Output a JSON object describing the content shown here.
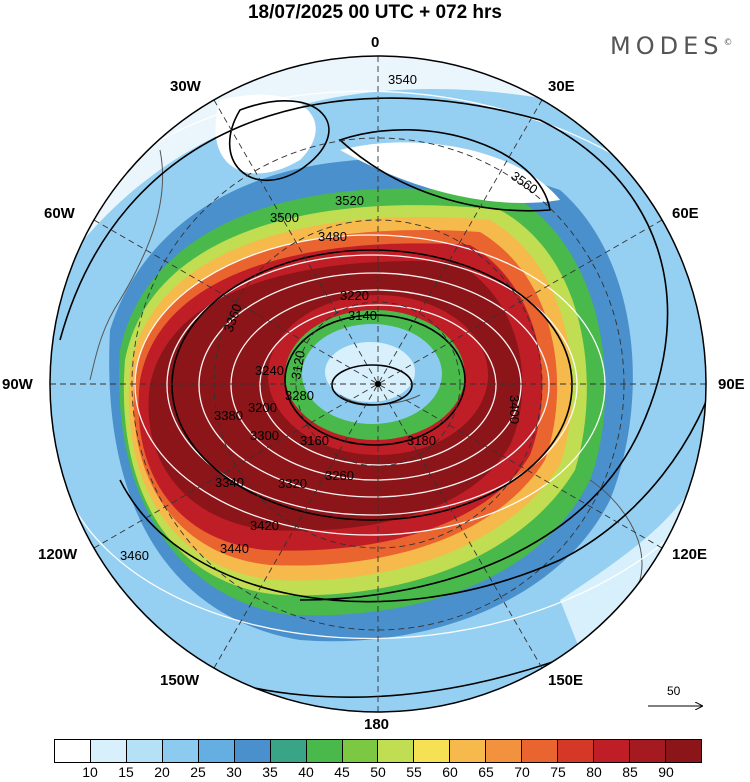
{
  "title": "18/07/2025  00 UTC  + 072 hrs",
  "brand": "MODES",
  "brand_mark": "©",
  "longitude_labels": {
    "n": "0",
    "n30e": "30E",
    "n60e": "60E",
    "e": "90E",
    "s120e": "120E",
    "s150e": "150E",
    "s": "180",
    "s150w": "150W",
    "s120w": "120W",
    "w": "90W",
    "n60w": "60W",
    "n30w": "30W"
  },
  "contour_labels": [
    "3540",
    "3560",
    "3520",
    "3500",
    "3480",
    "3460",
    "3440",
    "3420",
    "3400",
    "3380",
    "3360",
    "3340",
    "3320",
    "3300",
    "3280",
    "3260",
    "3240",
    "3220",
    "3200",
    "3180",
    "3160",
    "3140",
    "3120"
  ],
  "vector_scale": {
    "label": "50",
    "icon": "arrow-right-icon"
  },
  "legend": {
    "ticks": [
      "10",
      "15",
      "20",
      "25",
      "30",
      "35",
      "40",
      "45",
      "50",
      "55",
      "60",
      "65",
      "70",
      "75",
      "80",
      "85",
      "90"
    ],
    "colors": [
      "#ffffff",
      "#d8f0fb",
      "#b4e1f6",
      "#8ccbef",
      "#64aee2",
      "#4a90cc",
      "#3aa586",
      "#48b94a",
      "#7cc842",
      "#c1dd52",
      "#f6e154",
      "#f6b94c",
      "#f2913e",
      "#ea6430",
      "#d63828",
      "#bf1e26",
      "#a51a20",
      "#8b1519"
    ]
  }
}
